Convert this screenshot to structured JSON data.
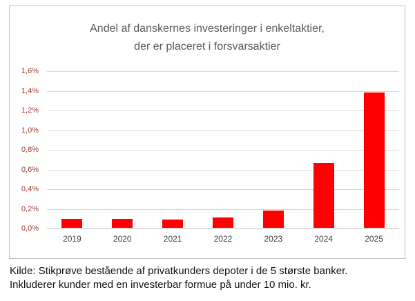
{
  "chart": {
    "title_line1": "Andel af danskernes investeringer i enkeltaktier,",
    "title_line2": "der er placeret i forsvarsaktier"
  },
  "caption": {
    "line1": "Kilde: Stikprøve bestående af privatkunders depoter i de 5 største banker.",
    "line2": "Inkluderer kunder med en investerbar formue på under 10 mio. kr."
  },
  "chart_data": {
    "type": "bar",
    "title": "Andel af danskernes investeringer i enkeltaktier, der er placeret i forsvarsaktier",
    "categories": [
      "2019",
      "2020",
      "2021",
      "2022",
      "2023",
      "2024",
      "2025"
    ],
    "values": [
      0.1,
      0.1,
      0.09,
      0.11,
      0.18,
      0.67,
      1.38
    ],
    "xlabel": "",
    "ylabel": "",
    "ylim": [
      0,
      1.6
    ],
    "ytick_step": 0.2,
    "ytick_labels": [
      "0,0%",
      "0,2%",
      "0,4%",
      "0,6%",
      "0,8%",
      "1,0%",
      "1,2%",
      "1,4%",
      "1,6%"
    ],
    "bar_color": "#ff0000",
    "grid": true,
    "legend": false,
    "gridline_color": "#d9d9d9",
    "axis_line_color": "#bfbfbf",
    "title_color": "#595959"
  }
}
